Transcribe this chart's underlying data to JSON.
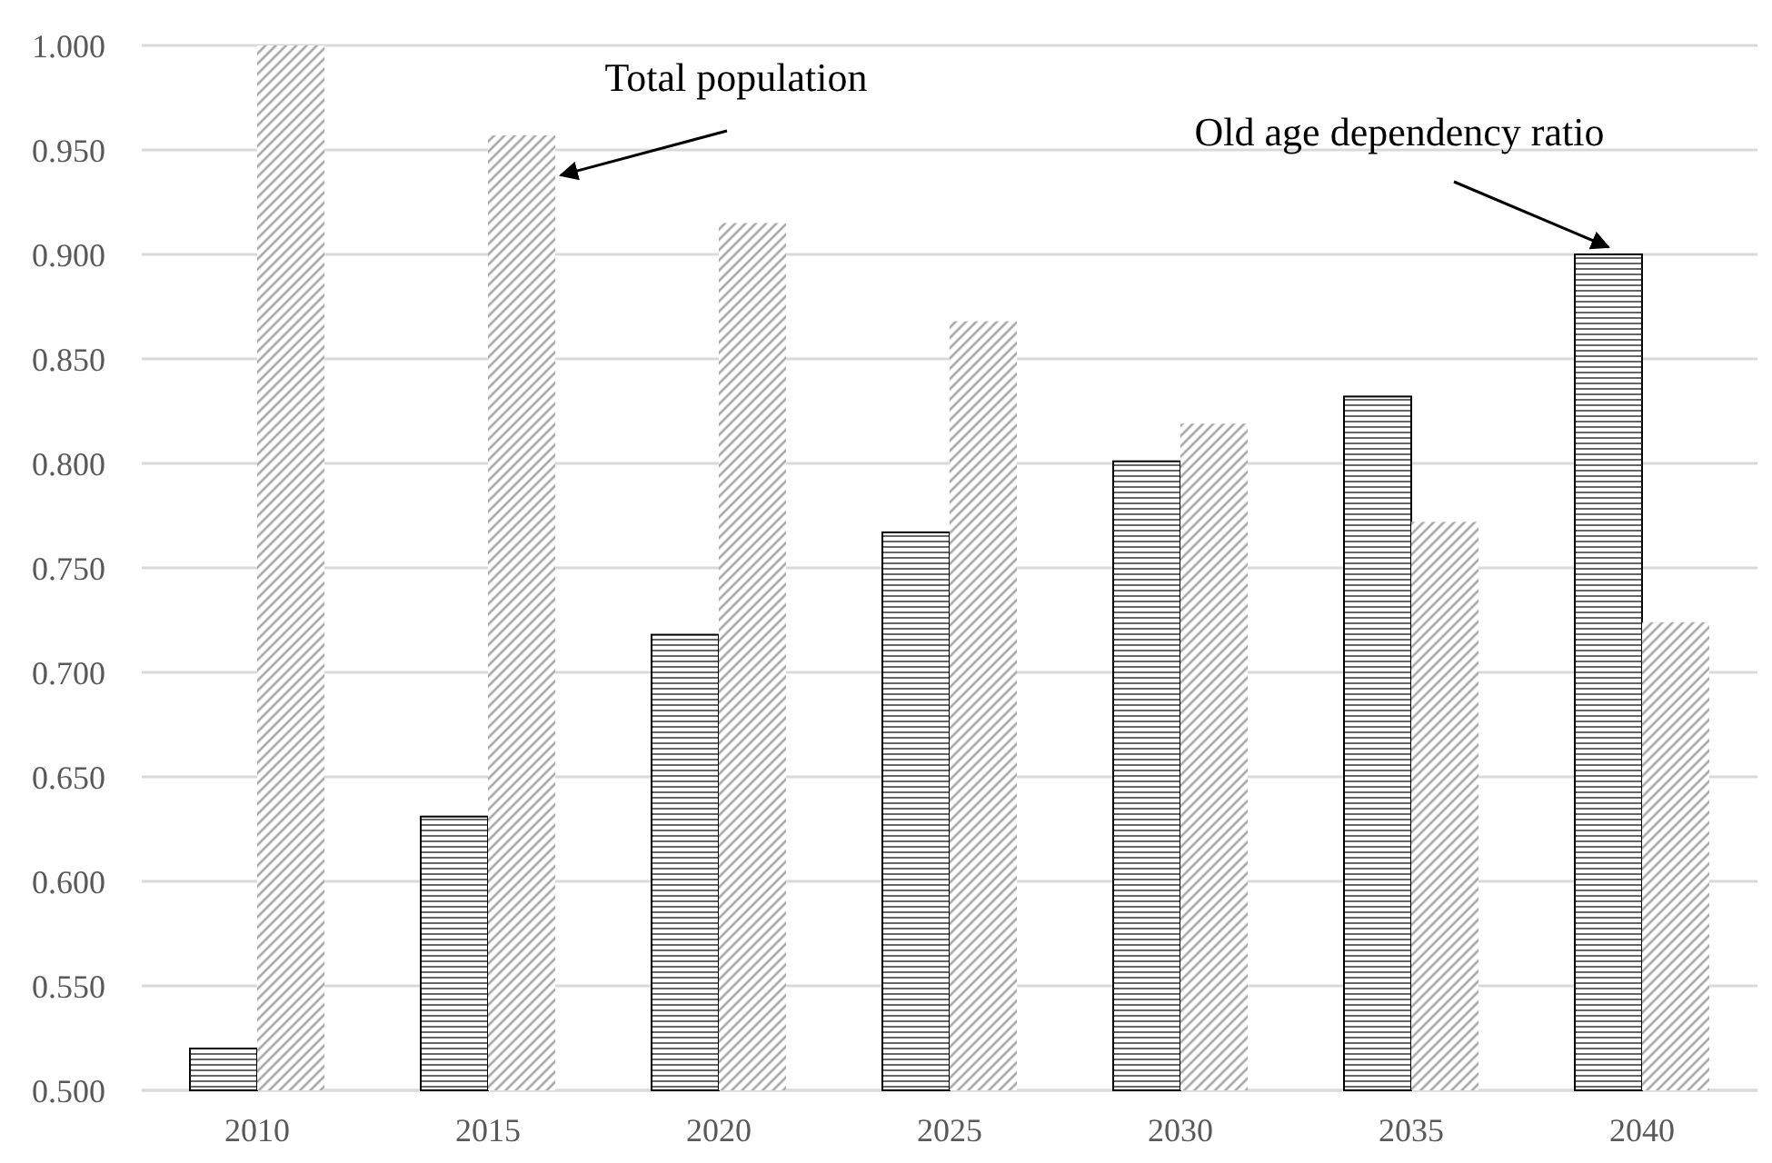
{
  "chart_data": {
    "type": "bar",
    "categories": [
      "2010",
      "2015",
      "2020",
      "2025",
      "2030",
      "2035",
      "2040"
    ],
    "series": [
      {
        "name": "Old age dependency ratio",
        "color": "#000000",
        "values": [
          0.52,
          0.631,
          0.718,
          0.767,
          0.801,
          0.832,
          0.9
        ]
      },
      {
        "name": "Total population",
        "color": "#a6a6a6",
        "values": [
          1.0,
          0.957,
          0.915,
          0.868,
          0.819,
          0.772,
          0.724
        ]
      }
    ],
    "ylim": [
      0.5,
      1.0
    ],
    "yticks": [
      {
        "value": 0.5,
        "label": "0.500"
      },
      {
        "value": 0.55,
        "label": "0.550"
      },
      {
        "value": 0.6,
        "label": "0.600"
      },
      {
        "value": 0.65,
        "label": "0.650"
      },
      {
        "value": 0.7,
        "label": "0.700"
      },
      {
        "value": 0.75,
        "label": "0.750"
      },
      {
        "value": 0.8,
        "label": "0.800"
      },
      {
        "value": 0.85,
        "label": "0.850"
      },
      {
        "value": 0.9,
        "label": "0.900"
      },
      {
        "value": 0.95,
        "label": "0.950"
      },
      {
        "value": 1.0,
        "label": "1.000"
      }
    ],
    "grid": "y",
    "legend": false
  }
}
